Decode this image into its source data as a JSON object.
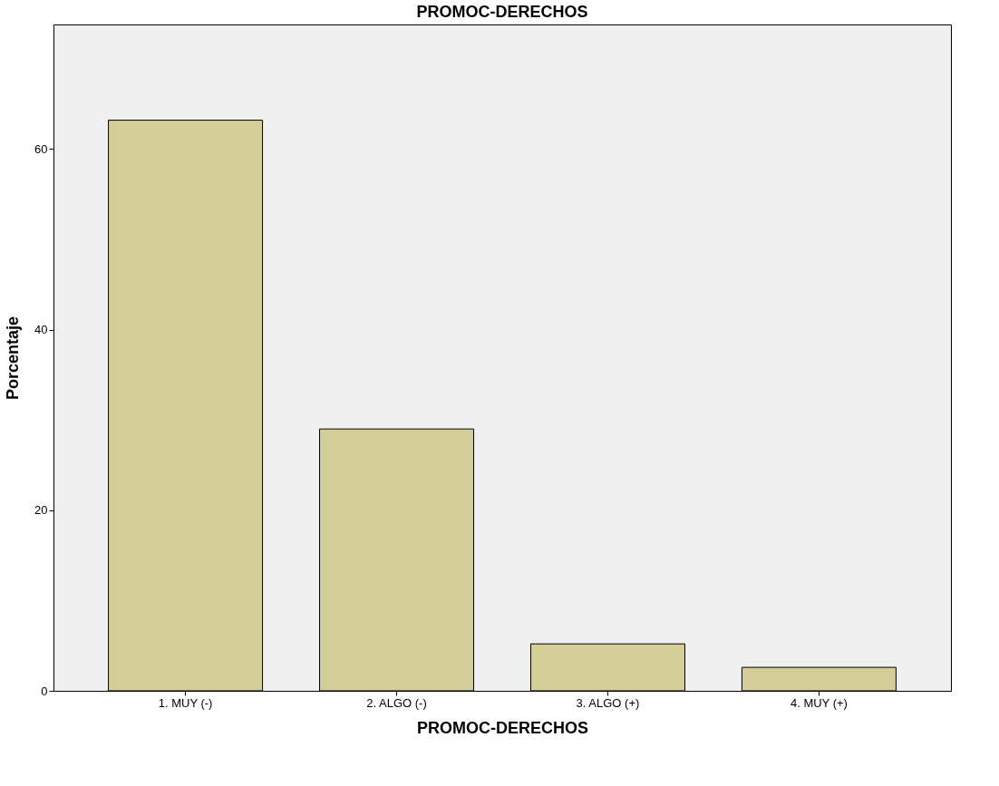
{
  "chart_data": {
    "type": "bar",
    "title": "PROMOC-DERECHOS",
    "xlabel": "PROMOC-DERECHOS",
    "ylabel": "Porcentaje",
    "categories": [
      "1. MUY (-)",
      "2. ALGO (-)",
      "3. ALGO (+)",
      "4. MUY (+)"
    ],
    "values": [
      63.2,
      29.0,
      5.2,
      2.6
    ],
    "color": "#d3ce97",
    "ylim": [
      0,
      73.8
    ],
    "yticks": [
      0,
      20,
      40,
      60
    ],
    "grid": false
  }
}
